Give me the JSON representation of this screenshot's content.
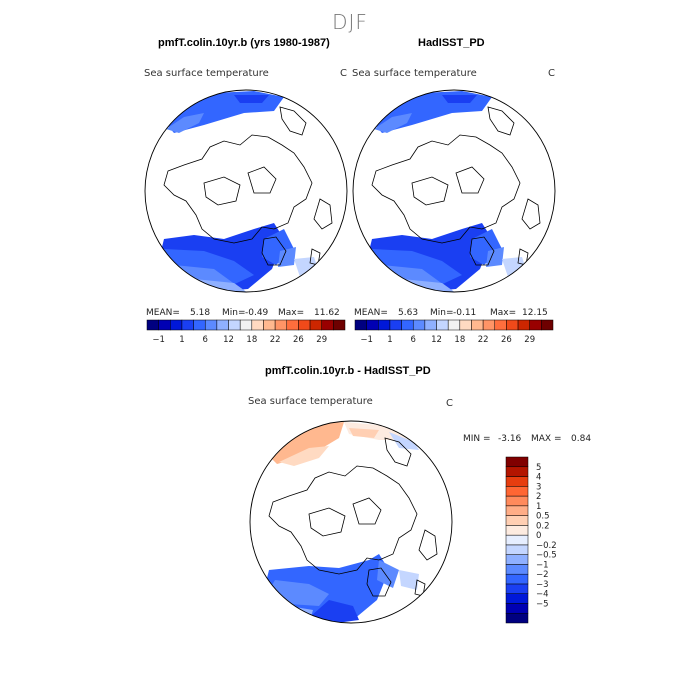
{
  "figure": {
    "season": "DJF",
    "panel_left_title": "pmfT.colin.10yr.b (yrs 1980-1987)",
    "panel_right_title": "HadISST_PD",
    "panel_bottom_title": "pmfT.colin.10yr.b - HadISST_PD"
  },
  "maps": {
    "left": {
      "variable": "Sea surface temperature",
      "units": "C",
      "mean_label": "MEAN=",
      "mean": "5.18",
      "min_label": "Min=",
      "min": "-0.49",
      "max_label": "Max=",
      "max": "11.62"
    },
    "right": {
      "variable": "Sea surface temperature",
      "units": "C",
      "mean_label": "MEAN=",
      "mean": "5.63",
      "min_label": "Min=",
      "min": "-0.11",
      "max_label": "Max=",
      "max": "12.15"
    },
    "bottom": {
      "variable": "Sea surface temperature",
      "units": "C",
      "min_label": "MIN =",
      "min": "-3.16",
      "max_label": "MAX =",
      "max": "0.84"
    }
  },
  "colorbar_abs": {
    "colors": [
      "#000080",
      "#0000b3",
      "#0018d9",
      "#1a3ff2",
      "#3366ff",
      "#5c8aff",
      "#8fb0ff",
      "#c4d6ff",
      "#f2f2f2",
      "#ffdac2",
      "#ffb88f",
      "#ff9466",
      "#ff6e3d",
      "#f04a1a",
      "#cc2600",
      "#990000",
      "#6e0000"
    ],
    "tick_labels": [
      "-1",
      "1",
      "6",
      "12",
      "18",
      "22",
      "26",
      "29"
    ]
  },
  "colorbar_diff": {
    "colors": [
      "#000080",
      "#0000b3",
      "#0018d9",
      "#1a3ff2",
      "#3366ff",
      "#5c8aff",
      "#8fb0ff",
      "#c4d6ff",
      "#e6eeff",
      "#fdebe0",
      "#ffcfb3",
      "#ffad87",
      "#ff8a5c",
      "#ff6633",
      "#e63d0f",
      "#b31500",
      "#800000"
    ],
    "labels_top_to_bottom": [
      "5",
      "4",
      "3",
      "2",
      "1",
      "0.5",
      "0.2",
      "0",
      "-0.2",
      "-0.5",
      "-1",
      "-2",
      "-3",
      "-4",
      "-5"
    ]
  }
}
